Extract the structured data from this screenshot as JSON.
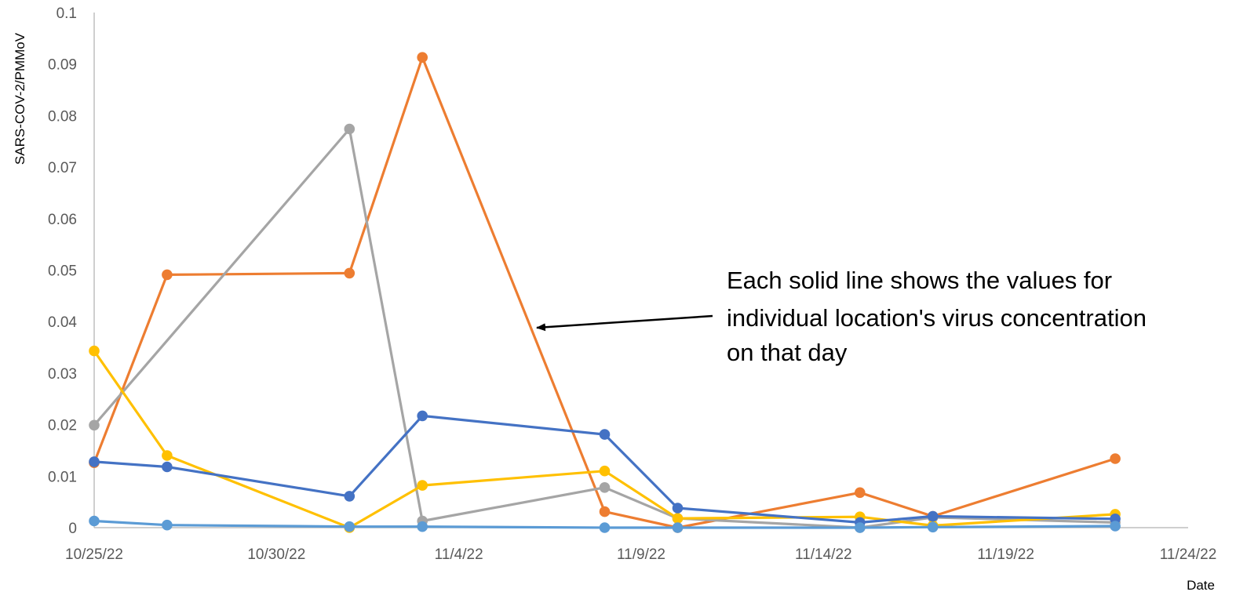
{
  "chart_data": {
    "type": "line",
    "title": "",
    "xlabel": "Date",
    "ylabel": "SARS-COV-2/PMMoV",
    "xlim": [
      "2022-10-25",
      "2022-11-24"
    ],
    "ylim": [
      0,
      0.1
    ],
    "x_ticks": [
      "10/25/22",
      "10/30/22",
      "11/4/22",
      "11/9/22",
      "11/14/22",
      "11/19/22",
      "11/24/22"
    ],
    "y_ticks": [
      "0",
      "0.01",
      "0.02",
      "0.03",
      "0.04",
      "0.05",
      "0.06",
      "0.07",
      "0.08",
      "0.09",
      "0.1"
    ],
    "grid": false,
    "legend": "none",
    "annotation": {
      "lines": [
        "Each solid line shows the values for",
        "individual location's virus concentration",
        "on that day"
      ]
    },
    "series": [
      {
        "color": "#ED7D31",
        "points": [
          [
            "2022-10-25",
            0.0126
          ],
          [
            "2022-10-27",
            0.0491
          ],
          [
            "2022-11-01",
            0.0494
          ],
          [
            "2022-11-03",
            0.0913
          ],
          [
            "2022-11-08",
            0.0031
          ],
          [
            "2022-11-10",
            0.0
          ],
          [
            "2022-11-15",
            0.0068
          ],
          [
            "2022-11-17",
            0.0022
          ],
          [
            "2022-11-22",
            0.0134
          ]
        ]
      },
      {
        "color": "#A5A5A5",
        "points": [
          [
            "2022-10-25",
            0.0199
          ],
          [
            "2022-11-01",
            0.0774
          ],
          [
            "2022-11-03",
            0.0013
          ],
          [
            "2022-11-08",
            0.0078
          ],
          [
            "2022-11-10",
            0.0018
          ],
          [
            "2022-11-15",
            0.0
          ],
          [
            "2022-11-17",
            0.002
          ],
          [
            "2022-11-22",
            0.001
          ]
        ]
      },
      {
        "color": "#FFC000",
        "points": [
          [
            "2022-10-25",
            0.0343
          ],
          [
            "2022-10-27",
            0.014
          ],
          [
            "2022-11-01",
            0.0
          ],
          [
            "2022-11-03",
            0.0082
          ],
          [
            "2022-11-08",
            0.011
          ],
          [
            "2022-11-10",
            0.0018
          ],
          [
            "2022-11-15",
            0.0021
          ],
          [
            "2022-11-17",
            0.0004
          ],
          [
            "2022-11-22",
            0.0026
          ]
        ]
      },
      {
        "color": "#4472C4",
        "points": [
          [
            "2022-10-25",
            0.0128
          ],
          [
            "2022-10-27",
            0.0118
          ],
          [
            "2022-11-01",
            0.0061
          ],
          [
            "2022-11-03",
            0.0217
          ],
          [
            "2022-11-08",
            0.0181
          ],
          [
            "2022-11-10",
            0.0038
          ],
          [
            "2022-11-15",
            0.001
          ],
          [
            "2022-11-17",
            0.0022
          ],
          [
            "2022-11-22",
            0.0017
          ]
        ]
      },
      {
        "color": "#5B9BD5",
        "points": [
          [
            "2022-10-25",
            0.0013
          ],
          [
            "2022-10-27",
            0.0005
          ],
          [
            "2022-11-01",
            0.0002
          ],
          [
            "2022-11-03",
            0.0002
          ],
          [
            "2022-11-08",
            0.0
          ],
          [
            "2022-11-10",
            0.0
          ],
          [
            "2022-11-15",
            0.0
          ],
          [
            "2022-11-17",
            0.0001
          ],
          [
            "2022-11-22",
            0.0003
          ]
        ]
      }
    ]
  }
}
